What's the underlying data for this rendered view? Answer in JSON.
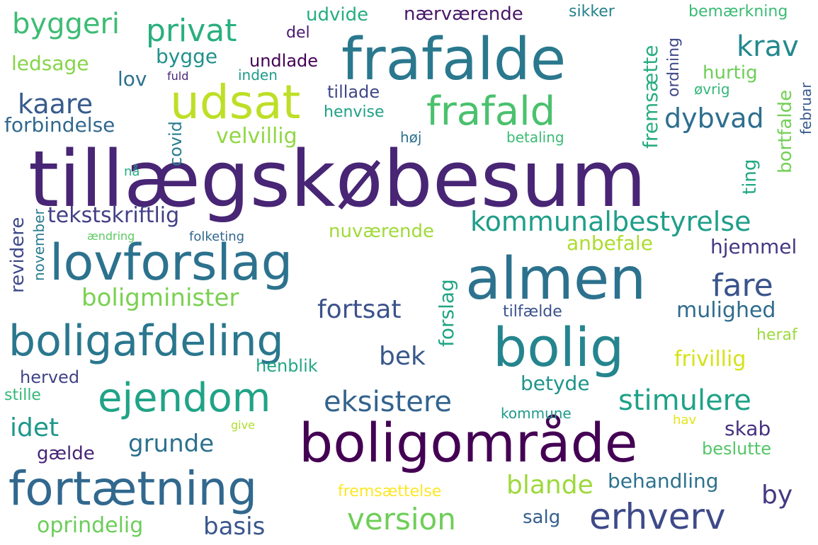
{
  "words": [
    {
      "text": "tillægskøbesum",
      "color": "#482575"
    },
    {
      "text": "frafalde",
      "color": "#2a788e"
    },
    {
      "text": "almen",
      "color": "#2c728e"
    },
    {
      "text": "boligområde",
      "color": "#440154"
    },
    {
      "text": "bolig",
      "color": "#25858e"
    },
    {
      "text": "lovforslag",
      "color": "#2c728e"
    },
    {
      "text": "fortætning",
      "color": "#31688e"
    },
    {
      "text": "boligafdeling",
      "color": "#2a778e"
    },
    {
      "text": "udsat",
      "color": "#bddf26"
    },
    {
      "text": "ejendom",
      "color": "#20a386"
    },
    {
      "text": "frafald",
      "color": "#4ac16d"
    },
    {
      "text": "erhverv",
      "color": "#3e4a89"
    },
    {
      "text": "privat",
      "color": "#29af7f"
    },
    {
      "text": "kommunalbestyrelse",
      "color": "#1f9e89"
    },
    {
      "text": "byggeri",
      "color": "#3dbc74"
    },
    {
      "text": "eksistere",
      "color": "#33638d"
    },
    {
      "text": "stimulere",
      "color": "#1fa287"
    },
    {
      "text": "boligminister",
      "color": "#7ad151"
    },
    {
      "text": "version",
      "color": "#6ece58"
    },
    {
      "text": "fare",
      "color": "#3a548c"
    },
    {
      "text": "fortsat",
      "color": "#3b528b"
    },
    {
      "text": "grunde",
      "color": "#2d708e"
    },
    {
      "text": "krav",
      "color": "#23898e"
    },
    {
      "text": "dybvad",
      "color": "#2e6e8e"
    },
    {
      "text": "kaare",
      "color": "#375b8d"
    },
    {
      "text": "blande",
      "color": "#9dd93b"
    },
    {
      "text": "basis",
      "color": "#39568c"
    },
    {
      "text": "idet",
      "color": "#1f988b"
    },
    {
      "text": "bek",
      "color": "#38588c"
    },
    {
      "text": "by",
      "color": "#453882"
    },
    {
      "text": "mulighed",
      "color": "#2f6c8e"
    },
    {
      "text": "tekstskriftlig",
      "color": "#424086"
    },
    {
      "text": "velvillig",
      "color": "#90d743"
    },
    {
      "text": "oprindelig",
      "color": "#6ccd5a"
    },
    {
      "text": "frivillig",
      "color": "#d5e21a"
    },
    {
      "text": "behandling",
      "color": "#2c728e"
    },
    {
      "text": "skab",
      "color": "#46327e"
    },
    {
      "text": "nuværende",
      "color": "#a0da39"
    },
    {
      "text": "forbindelse",
      "color": "#31688e"
    },
    {
      "text": "anbefale",
      "color": "#addc30"
    },
    {
      "text": "hjemmel",
      "color": "#443983"
    },
    {
      "text": "betyde",
      "color": "#1f958b"
    },
    {
      "text": "nærværende",
      "color": "#481769"
    },
    {
      "text": "bygge",
      "color": "#21918c"
    },
    {
      "text": "udvide",
      "color": "#26ad81"
    },
    {
      "text": "ledsage",
      "color": "#86d549"
    },
    {
      "text": "hurtig",
      "color": "#6ece58"
    },
    {
      "text": "lov",
      "color": "#2c728e"
    },
    {
      "text": "undlade",
      "color": "#440154"
    },
    {
      "text": "tillade",
      "color": "#3f4788"
    },
    {
      "text": "beslutte",
      "color": "#54c568"
    },
    {
      "text": "salg",
      "color": "#35608d"
    },
    {
      "text": "gælde",
      "color": "#482576"
    },
    {
      "text": "fremsætte",
      "color": "#27ad81"
    },
    {
      "text": "forslag",
      "color": "#21a585"
    },
    {
      "text": "bortfalde",
      "color": "#73d056"
    },
    {
      "text": "ting",
      "color": "#22a884"
    },
    {
      "text": "revidere",
      "color": "#3e4989"
    },
    {
      "text": "covid",
      "color": "#287d8e"
    },
    {
      "text": "ordning",
      "color": "#3f4889"
    },
    {
      "text": "henblik",
      "color": "#22a785"
    },
    {
      "text": "fremsættelse",
      "color": "#fde725"
    },
    {
      "text": "herved",
      "color": "#414487"
    },
    {
      "text": "heraf",
      "color": "#9bd93c"
    },
    {
      "text": "tilfælde",
      "color": "#3b528b"
    },
    {
      "text": "bemærkning",
      "color": "#3bbb75"
    },
    {
      "text": "sikker",
      "color": "#26828e"
    },
    {
      "text": "henvise",
      "color": "#1fa088"
    },
    {
      "text": "stille",
      "color": "#35b779"
    },
    {
      "text": "del",
      "color": "#481a6c"
    },
    {
      "text": "betaling",
      "color": "#3bbb75"
    },
    {
      "text": "kommune",
      "color": "#1f9a8a"
    },
    {
      "text": "inden",
      "color": "#1e9c89"
    },
    {
      "text": "øvrig",
      "color": "#35b779"
    },
    {
      "text": "februar",
      "color": "#375a8c"
    },
    {
      "text": "november",
      "color": "#287c8e"
    },
    {
      "text": "høj",
      "color": "#2d718e"
    },
    {
      "text": "hav",
      "color": "#e2e418"
    },
    {
      "text": "fuld",
      "color": "#482878"
    },
    {
      "text": "nå",
      "color": "#25ac82"
    },
    {
      "text": "ændring",
      "color": "#5ec962"
    },
    {
      "text": "folketing",
      "color": "#31678e"
    },
    {
      "text": "give",
      "color": "#b0dd2f"
    }
  ]
}
